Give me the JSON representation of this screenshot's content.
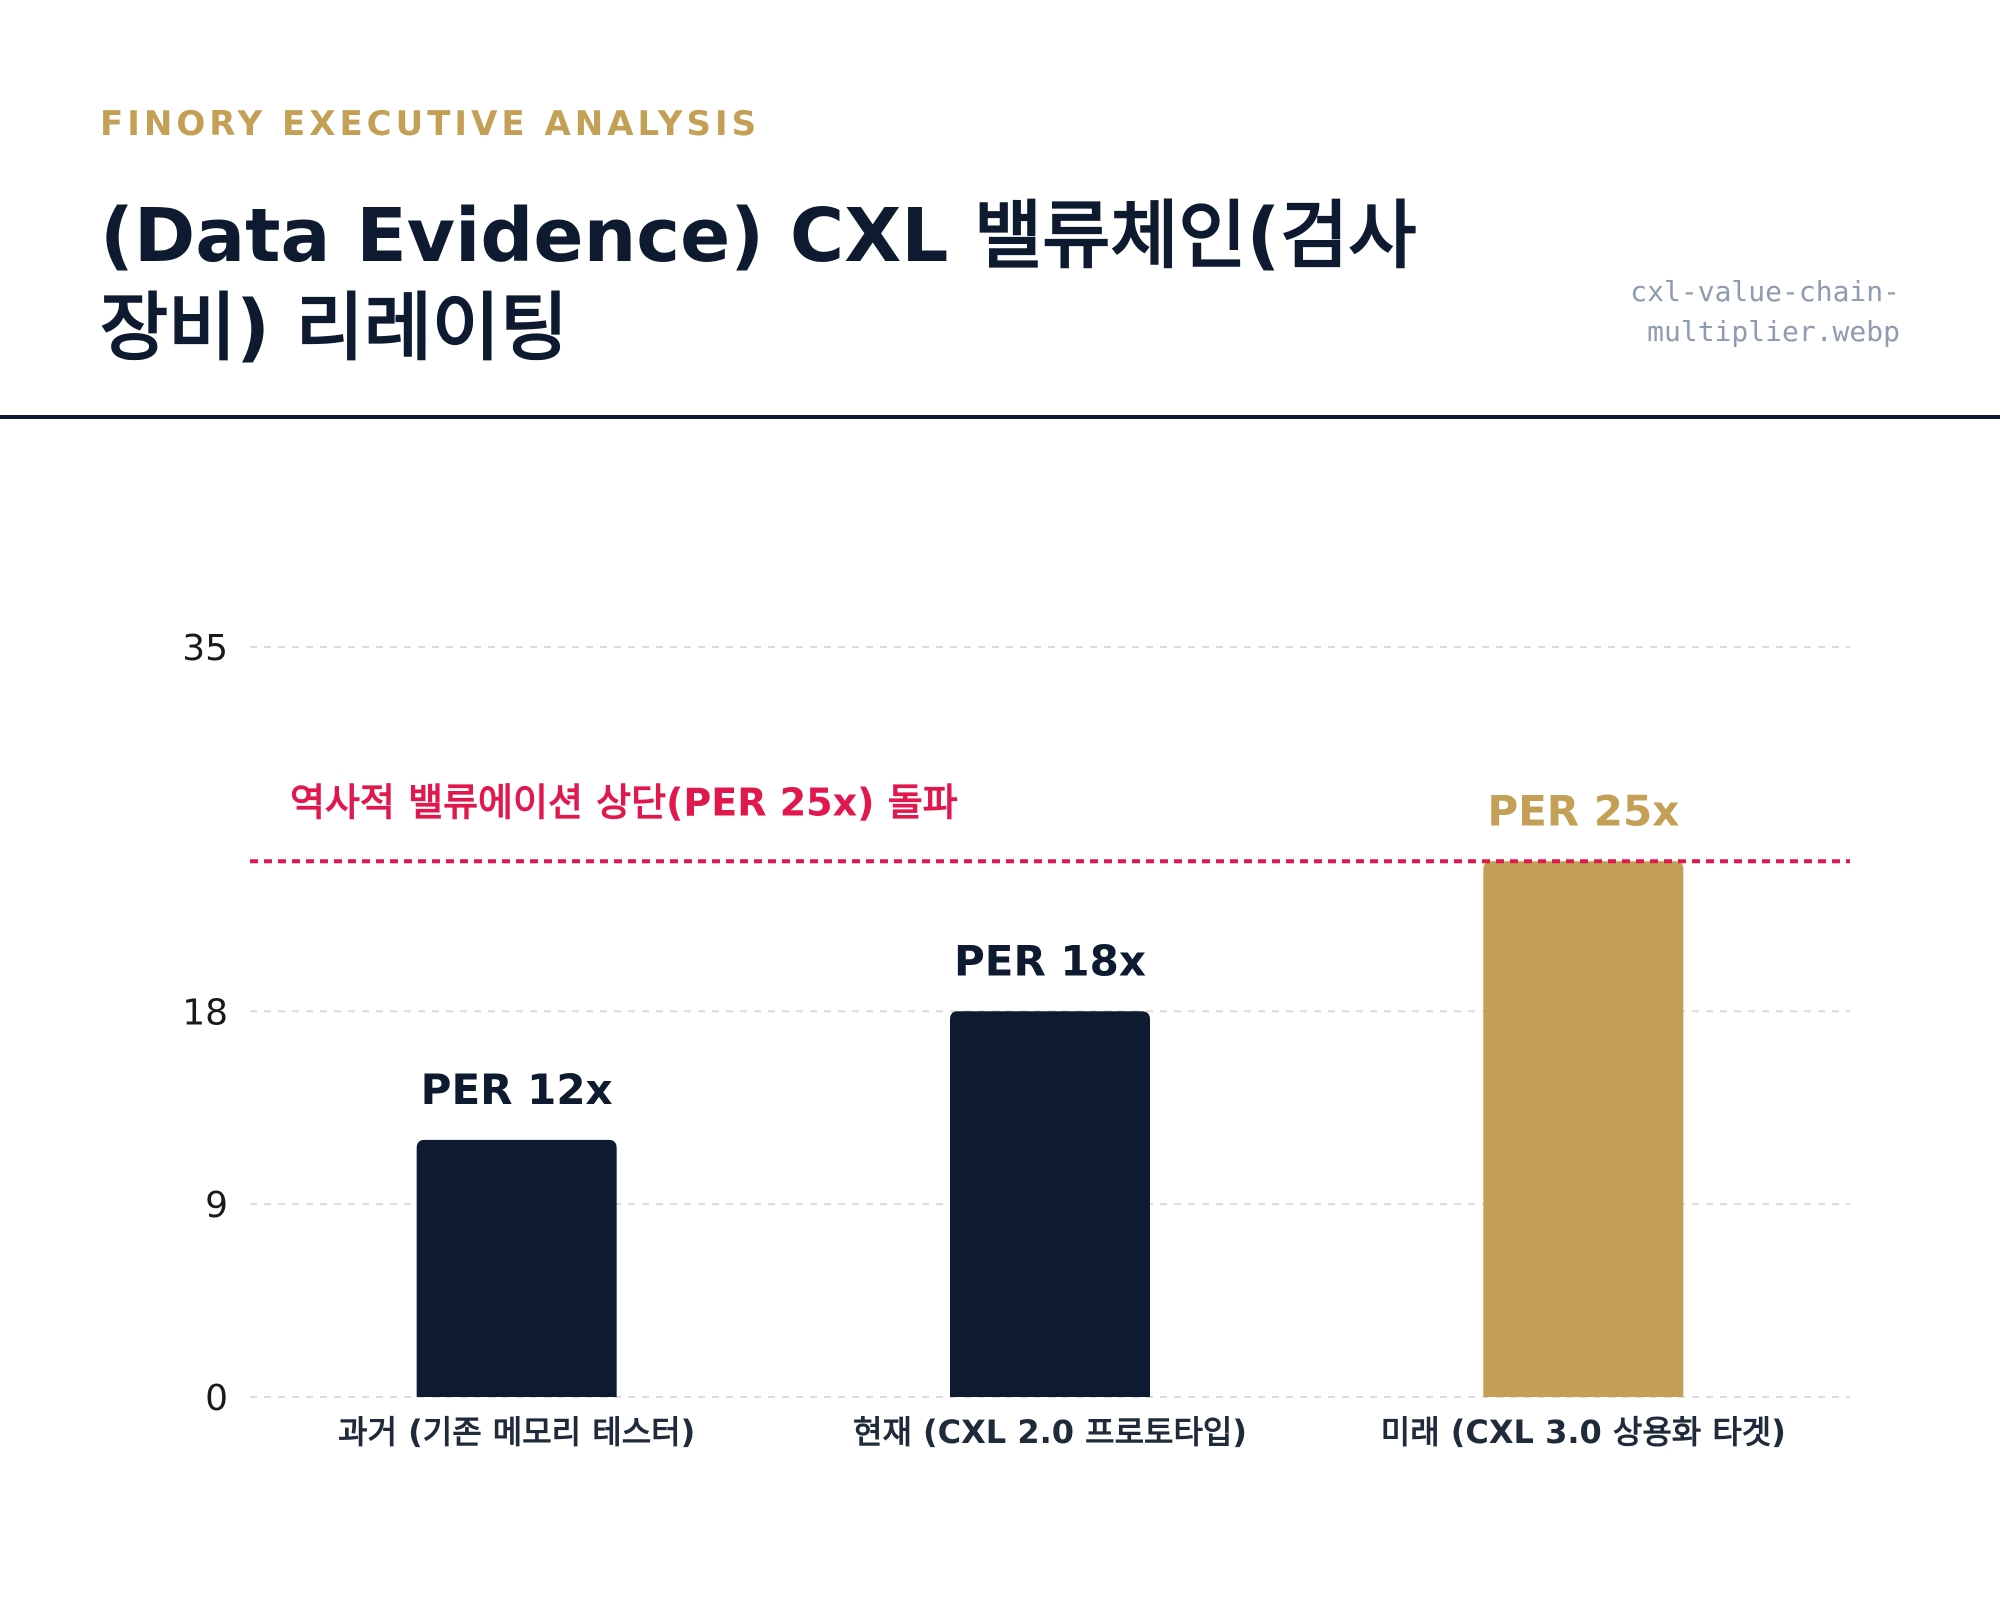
{
  "header": {
    "eyebrow": "FINORY EXECUTIVE ANALYSIS",
    "title": "(Data Evidence) CXL 밸류체인(검사장비) 리레이팅",
    "filename": "cxl-value-chain-multiplier.webp"
  },
  "colors": {
    "navy": "#0e1a30",
    "gold": "#c4a057",
    "threshold": "#e0184d",
    "grid": "#dcdcdc"
  },
  "chart_data": {
    "type": "bar",
    "categories": [
      "과거 (기존 메모리 테스터)",
      "현재 (CXL 2.0 프로토타입)",
      "미래 (CXL 3.0 상용화 타겟)"
    ],
    "values": [
      12,
      18,
      25
    ],
    "data_labels": [
      "PER 12x",
      "PER 18x",
      "PER 25x"
    ],
    "bar_colors": [
      "#0e1a30",
      "#0e1a30",
      "#c4a057"
    ],
    "yticks": [
      0,
      9,
      18,
      35
    ],
    "ylim": [
      0,
      35
    ],
    "grid": true,
    "reference_line": {
      "value": 25,
      "label": "역사적 밸류에이션 상단(PER 25x) 돌파"
    }
  }
}
